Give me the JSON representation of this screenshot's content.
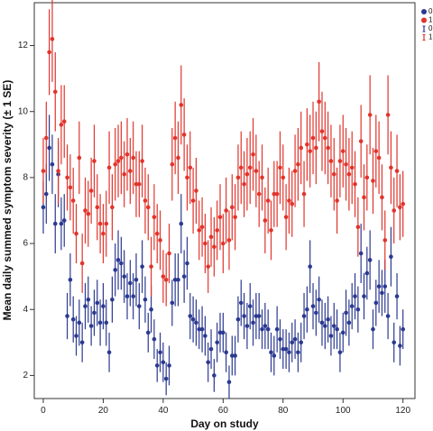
{
  "chart_data": {
    "type": "scatter",
    "title": "",
    "xlabel": "Day on study",
    "ylabel": "Mean daily summed symptom severity (± 1 SE)",
    "xlim": [
      -3,
      124
    ],
    "ylim": [
      1.3,
      13.3
    ],
    "xticks": [
      0,
      20,
      40,
      60,
      80,
      100,
      120
    ],
    "yticks": [
      2,
      4,
      6,
      8,
      10,
      12
    ],
    "grid": false,
    "legend_position": "top-right",
    "legend_entries": [
      {
        "label": "0",
        "marker": "point",
        "series": 0
      },
      {
        "label": "1",
        "marker": "point",
        "series": 1
      },
      {
        "label": "0",
        "marker": "errorbar",
        "series": 0
      },
      {
        "label": "1",
        "marker": "errorbar",
        "series": 1
      }
    ],
    "series": [
      {
        "name": "0",
        "color": "#2b3990",
        "points": [
          [
            0,
            7.1,
            0.8
          ],
          [
            1,
            7.5,
            0.9
          ],
          [
            2,
            8.9,
            1.0
          ],
          [
            3,
            8.4,
            0.9
          ],
          [
            4,
            6.6,
            0.9
          ],
          [
            5,
            8.1,
            1.0
          ],
          [
            6,
            6.6,
            0.8
          ],
          [
            7,
            6.7,
            0.8
          ],
          [
            8,
            3.8,
            0.7
          ],
          [
            9,
            4.9,
            0.8
          ],
          [
            10,
            3.7,
            0.7
          ],
          [
            11,
            3.2,
            0.6
          ],
          [
            12,
            3.6,
            0.7
          ],
          [
            13,
            3.0,
            0.6
          ],
          [
            14,
            4.1,
            0.7
          ],
          [
            15,
            4.3,
            0.7
          ],
          [
            16,
            3.5,
            0.6
          ],
          [
            17,
            3.9,
            0.7
          ],
          [
            18,
            4.2,
            0.7
          ],
          [
            19,
            3.6,
            0.7
          ],
          [
            20,
            4.1,
            0.7
          ],
          [
            21,
            3.6,
            0.7
          ],
          [
            22,
            2.7,
            0.6
          ],
          [
            23,
            4.3,
            0.7
          ],
          [
            24,
            5.2,
            0.8
          ],
          [
            25,
            5.5,
            0.9
          ],
          [
            26,
            5.4,
            0.8
          ],
          [
            27,
            5.0,
            0.8
          ],
          [
            28,
            4.4,
            0.7
          ],
          [
            29,
            4.8,
            0.7
          ],
          [
            30,
            4.4,
            0.7
          ],
          [
            31,
            4.9,
            0.8
          ],
          [
            32,
            4.1,
            0.7
          ],
          [
            33,
            5.3,
            0.8
          ],
          [
            34,
            4.3,
            0.7
          ],
          [
            35,
            3.3,
            0.6
          ],
          [
            36,
            4.0,
            0.7
          ],
          [
            37,
            3.1,
            0.6
          ],
          [
            38,
            2.3,
            0.5
          ],
          [
            39,
            2.7,
            0.6
          ],
          [
            40,
            2.4,
            0.6
          ],
          [
            41,
            1.9,
            0.5
          ],
          [
            42,
            2.3,
            0.6
          ],
          [
            43,
            4.2,
            0.7
          ],
          [
            44,
            4.9,
            0.8
          ],
          [
            45,
            4.9,
            0.8
          ],
          [
            46,
            6.6,
            0.9
          ],
          [
            47,
            5.0,
            0.8
          ],
          [
            48,
            5.4,
            0.8
          ],
          [
            49,
            3.8,
            0.7
          ],
          [
            50,
            3.7,
            0.7
          ],
          [
            51,
            3.6,
            0.7
          ],
          [
            52,
            3.4,
            0.6
          ],
          [
            53,
            3.4,
            0.7
          ],
          [
            54,
            3.2,
            0.6
          ],
          [
            55,
            2.4,
            0.6
          ],
          [
            56,
            2.8,
            0.6
          ],
          [
            57,
            2.0,
            0.5
          ],
          [
            58,
            3.0,
            0.6
          ],
          [
            59,
            3.3,
            0.6
          ],
          [
            60,
            3.3,
            0.6
          ],
          [
            61,
            2.7,
            0.6
          ],
          [
            62,
            1.8,
            0.5
          ],
          [
            63,
            2.6,
            0.6
          ],
          [
            64,
            2.6,
            0.6
          ],
          [
            65,
            3.7,
            0.7
          ],
          [
            66,
            4.2,
            0.7
          ],
          [
            67,
            3.8,
            0.7
          ],
          [
            68,
            3.5,
            0.7
          ],
          [
            69,
            4.1,
            0.7
          ],
          [
            70,
            3.6,
            0.7
          ],
          [
            71,
            3.8,
            0.7
          ],
          [
            72,
            3.8,
            0.7
          ],
          [
            73,
            3.4,
            0.6
          ],
          [
            74,
            3.5,
            0.7
          ],
          [
            75,
            3.4,
            0.6
          ],
          [
            76,
            2.7,
            0.6
          ],
          [
            77,
            2.6,
            0.6
          ],
          [
            78,
            3.4,
            0.7
          ],
          [
            79,
            3.1,
            0.6
          ],
          [
            80,
            2.8,
            0.6
          ],
          [
            81,
            2.8,
            0.6
          ],
          [
            82,
            2.7,
            0.6
          ],
          [
            83,
            3.0,
            0.6
          ],
          [
            84,
            3.1,
            0.6
          ],
          [
            85,
            2.7,
            0.6
          ],
          [
            86,
            3.0,
            0.6
          ],
          [
            87,
            3.8,
            0.7
          ],
          [
            88,
            4.0,
            0.7
          ],
          [
            89,
            5.3,
            0.8
          ],
          [
            90,
            4.1,
            0.7
          ],
          [
            91,
            3.9,
            0.7
          ],
          [
            92,
            4.3,
            0.7
          ],
          [
            93,
            3.6,
            0.7
          ],
          [
            94,
            3.5,
            0.7
          ],
          [
            95,
            3.7,
            0.7
          ],
          [
            96,
            3.2,
            0.6
          ],
          [
            97,
            3.5,
            0.7
          ],
          [
            98,
            3.4,
            0.6
          ],
          [
            99,
            2.7,
            0.6
          ],
          [
            100,
            3.3,
            0.6
          ],
          [
            101,
            3.9,
            0.7
          ],
          [
            102,
            3.6,
            0.7
          ],
          [
            103,
            4.1,
            0.7
          ],
          [
            104,
            4.4,
            0.7
          ],
          [
            105,
            4.0,
            0.7
          ],
          [
            106,
            5.7,
            0.9
          ],
          [
            107,
            4.4,
            0.7
          ],
          [
            108,
            5.1,
            0.8
          ],
          [
            109,
            5.5,
            0.9
          ],
          [
            110,
            3.4,
            0.6
          ],
          [
            111,
            4.2,
            0.7
          ],
          [
            112,
            4.7,
            0.8
          ],
          [
            113,
            4.5,
            0.7
          ],
          [
            114,
            4.7,
            0.8
          ],
          [
            115,
            3.8,
            0.7
          ],
          [
            116,
            5.6,
            0.9
          ],
          [
            117,
            3.0,
            0.6
          ],
          [
            118,
            4.4,
            0.7
          ],
          [
            119,
            2.9,
            0.6
          ],
          [
            120,
            3.4,
            0.6
          ]
        ]
      },
      {
        "name": "1",
        "color": "#e0342c",
        "points": [
          [
            0,
            8.2,
            1.0
          ],
          [
            1,
            9.2,
            1.1
          ],
          [
            2,
            11.8,
            1.3
          ],
          [
            3,
            12.2,
            1.3
          ],
          [
            4,
            10.6,
            1.2
          ],
          [
            5,
            8.2,
            1.0
          ],
          [
            6,
            9.6,
            1.2
          ],
          [
            7,
            9.7,
            1.1
          ],
          [
            8,
            8.0,
            1.0
          ],
          [
            9,
            7.7,
            1.0
          ],
          [
            10,
            7.3,
            1.0
          ],
          [
            11,
            6.3,
            0.9
          ],
          [
            12,
            8.6,
            1.1
          ],
          [
            13,
            5.4,
            0.9
          ],
          [
            14,
            7.0,
            1.0
          ],
          [
            15,
            6.9,
            1.0
          ],
          [
            16,
            7.6,
            1.0
          ],
          [
            17,
            8.5,
            1.1
          ],
          [
            18,
            7.1,
            1.0
          ],
          [
            19,
            6.6,
            0.9
          ],
          [
            20,
            6.3,
            0.9
          ],
          [
            21,
            6.6,
            1.0
          ],
          [
            22,
            8.3,
            1.1
          ],
          [
            23,
            7.1,
            1.0
          ],
          [
            24,
            8.4,
            1.1
          ],
          [
            25,
            8.5,
            1.1
          ],
          [
            26,
            8.6,
            1.1
          ],
          [
            27,
            8.1,
            1.0
          ],
          [
            28,
            8.7,
            1.1
          ],
          [
            29,
            8.2,
            1.0
          ],
          [
            30,
            8.6,
            1.1
          ],
          [
            31,
            7.8,
            1.0
          ],
          [
            32,
            7.8,
            1.0
          ],
          [
            33,
            8.5,
            1.1
          ],
          [
            34,
            7.3,
            1.0
          ],
          [
            35,
            7.1,
            1.0
          ],
          [
            36,
            5.3,
            0.9
          ],
          [
            37,
            6.8,
            1.0
          ],
          [
            38,
            6.3,
            0.9
          ],
          [
            39,
            6.1,
            0.9
          ],
          [
            40,
            5.0,
            0.8
          ],
          [
            41,
            4.9,
            0.8
          ],
          [
            42,
            5.7,
            0.9
          ],
          [
            43,
            8.4,
            1.1
          ],
          [
            44,
            9.2,
            1.1
          ],
          [
            45,
            8.6,
            1.1
          ],
          [
            46,
            10.2,
            1.2
          ],
          [
            47,
            9.3,
            1.1
          ],
          [
            48,
            8.0,
            1.0
          ],
          [
            49,
            8.3,
            1.1
          ],
          [
            50,
            7.3,
            1.0
          ],
          [
            51,
            7.6,
            1.0
          ],
          [
            52,
            6.4,
            0.9
          ],
          [
            53,
            6.5,
            0.9
          ],
          [
            54,
            6.0,
            0.9
          ],
          [
            55,
            5.3,
            0.8
          ],
          [
            56,
            6.2,
            0.9
          ],
          [
            57,
            5.9,
            0.9
          ],
          [
            58,
            6.4,
            0.9
          ],
          [
            59,
            6.8,
            1.0
          ],
          [
            60,
            6.0,
            0.9
          ],
          [
            61,
            7.0,
            1.0
          ],
          [
            62,
            6.1,
            0.9
          ],
          [
            63,
            7.1,
            1.0
          ],
          [
            64,
            6.8,
            1.0
          ],
          [
            65,
            8.0,
            1.0
          ],
          [
            66,
            8.3,
            1.1
          ],
          [
            67,
            7.8,
            1.0
          ],
          [
            68,
            8.1,
            1.1
          ],
          [
            69,
            8.3,
            1.1
          ],
          [
            70,
            8.7,
            1.1
          ],
          [
            71,
            8.2,
            1.1
          ],
          [
            72,
            7.5,
            1.0
          ],
          [
            73,
            8.0,
            1.0
          ],
          [
            74,
            6.7,
            1.0
          ],
          [
            75,
            7.3,
            1.0
          ],
          [
            76,
            6.4,
            0.9
          ],
          [
            77,
            7.5,
            1.0
          ],
          [
            78,
            7.5,
            1.0
          ],
          [
            79,
            8.3,
            1.1
          ],
          [
            80,
            8.0,
            1.0
          ],
          [
            81,
            6.8,
            1.0
          ],
          [
            82,
            7.3,
            1.0
          ],
          [
            83,
            7.2,
            1.0
          ],
          [
            84,
            8.2,
            1.1
          ],
          [
            85,
            8.4,
            1.1
          ],
          [
            86,
            8.9,
            1.1
          ],
          [
            87,
            7.5,
            1.0
          ],
          [
            88,
            9.0,
            1.1
          ],
          [
            89,
            8.8,
            1.1
          ],
          [
            90,
            9.2,
            1.1
          ],
          [
            91,
            8.9,
            1.1
          ],
          [
            92,
            10.3,
            1.2
          ],
          [
            93,
            9.4,
            1.2
          ],
          [
            94,
            9.2,
            1.1
          ],
          [
            95,
            8.9,
            1.1
          ],
          [
            96,
            8.5,
            1.1
          ],
          [
            97,
            8.1,
            1.1
          ],
          [
            98,
            7.3,
            1.0
          ],
          [
            99,
            8.5,
            1.1
          ],
          [
            100,
            8.8,
            1.1
          ],
          [
            101,
            8.4,
            1.1
          ],
          [
            102,
            8.1,
            1.1
          ],
          [
            103,
            8.3,
            1.1
          ],
          [
            104,
            7.8,
            1.0
          ],
          [
            105,
            6.5,
            0.9
          ],
          [
            106,
            9.1,
            1.1
          ],
          [
            107,
            7.4,
            1.0
          ],
          [
            108,
            8.0,
            1.0
          ],
          [
            109,
            9.9,
            1.2
          ],
          [
            110,
            7.9,
            1.0
          ],
          [
            111,
            8.8,
            1.1
          ],
          [
            112,
            8.6,
            1.1
          ],
          [
            113,
            7.4,
            1.0
          ],
          [
            114,
            6.1,
            0.9
          ],
          [
            115,
            9.9,
            1.2
          ],
          [
            116,
            8.3,
            1.1
          ],
          [
            117,
            7.0,
            1.0
          ],
          [
            118,
            8.2,
            1.1
          ],
          [
            119,
            7.1,
            1.0
          ],
          [
            120,
            7.2,
            1.0
          ]
        ]
      }
    ]
  }
}
